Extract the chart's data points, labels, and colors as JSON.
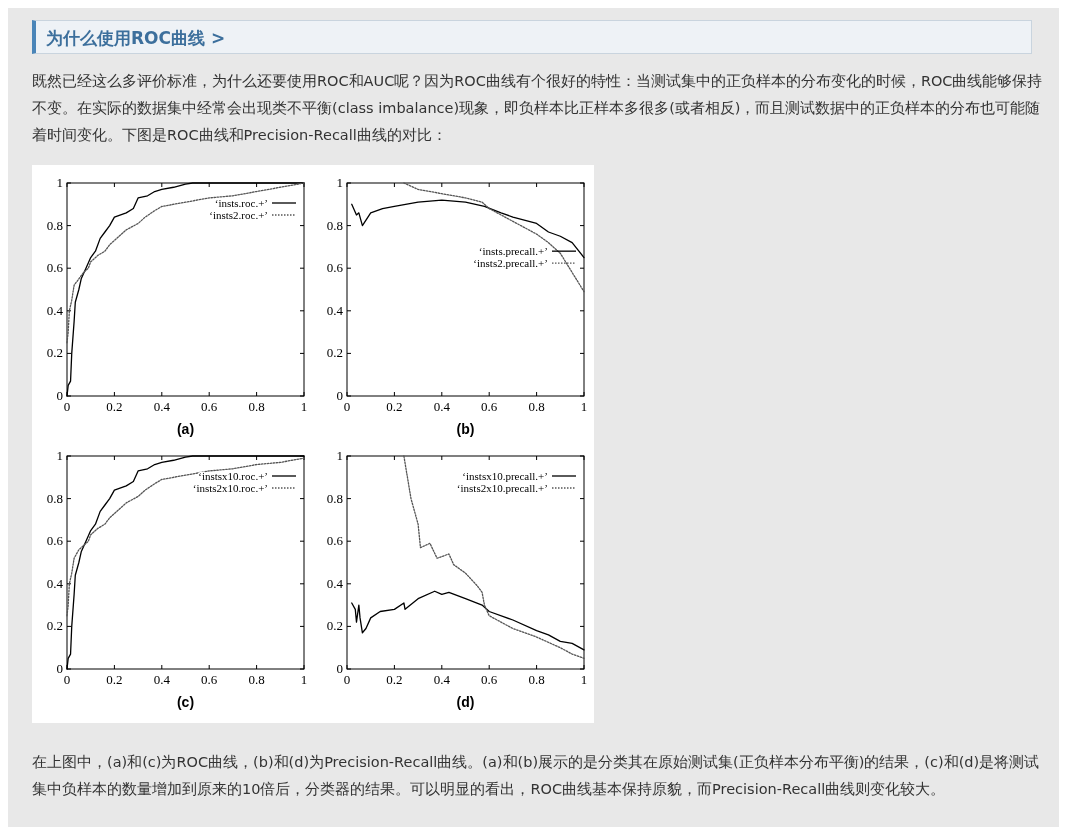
{
  "chart_data": [
    {
      "type": "line",
      "xlabel": "(a)",
      "xlim": [
        0,
        1
      ],
      "ylim": [
        0,
        1
      ],
      "xticks": [
        0,
        0.2,
        0.4,
        0.6,
        0.8,
        1
      ],
      "yticks": [
        0,
        0.2,
        0.4,
        0.6,
        0.8,
        1
      ],
      "legend": "top right",
      "annotations": [
        "为什么使用ROC曲线 >",
        "既然已经这么多评价标准，为什么还要使用ROC和AUC呢？因为ROC曲线有个很好的特性：当测试集中的正负样本的分布变化的时候，ROC曲线能够保持不变。在实际的数据集中经常会出现类不平衡(class imbalance)现象，即负样本比正样本多很多(或者相反)，而且测试数据中的正负样本的分布也可能随着时间变化。下图是ROC曲线和Precision-Recall曲线的对比：",
        "在上图中，(a)和(c)为ROC曲线，(b)和(d)为Precision-Recall曲线。(a)和(b)展示的是分类其在原始测试集(正负样本分布平衡)的结果，(c)和(d)是将测试集中负样本的数量增加到原来的10倍后，分类器的结果。可以明显的看出，ROC曲线基本保持原貌，而Precision-Recall曲线则变化较大。"
      ],
      "series": [
        {
          "name": "‘insts.roc.+’",
          "color": "#000000",
          "line_style": "solid",
          "x": [
            0,
            0.005,
            0.015,
            0.02,
            0.03,
            0.035,
            0.05,
            0.06,
            0.08,
            0.1,
            0.12,
            0.14,
            0.16,
            0.18,
            0.2,
            0.25,
            0.28,
            0.3,
            0.34,
            0.37,
            0.4,
            0.45,
            0.5,
            0.53,
            1
          ],
          "values": [
            0,
            0.05,
            0.07,
            0.2,
            0.35,
            0.44,
            0.5,
            0.55,
            0.6,
            0.65,
            0.68,
            0.74,
            0.77,
            0.8,
            0.84,
            0.86,
            0.88,
            0.93,
            0.94,
            0.96,
            0.97,
            0.98,
            0.995,
            1,
            1
          ]
        },
        {
          "name": "‘insts2.roc.+’",
          "color": "#555555",
          "line_style": "dotted",
          "x": [
            0,
            0.005,
            0.01,
            0.02,
            0.03,
            0.05,
            0.07,
            0.09,
            0.1,
            0.13,
            0.16,
            0.18,
            0.2,
            0.25,
            0.3,
            0.33,
            0.37,
            0.4,
            0.5,
            0.6,
            0.7,
            0.8,
            0.9,
            0.95,
            1
          ],
          "values": [
            0.25,
            0.3,
            0.4,
            0.45,
            0.52,
            0.55,
            0.58,
            0.6,
            0.63,
            0.66,
            0.68,
            0.71,
            0.73,
            0.78,
            0.81,
            0.84,
            0.87,
            0.89,
            0.91,
            0.93,
            0.94,
            0.96,
            0.98,
            0.99,
            1
          ]
        }
      ]
    },
    {
      "type": "line",
      "xlabel": "(b)",
      "xlim": [
        0,
        1
      ],
      "ylim": [
        0,
        1
      ],
      "xticks": [
        0,
        0.2,
        0.4,
        0.6,
        0.8,
        1
      ],
      "yticks": [
        0,
        0.2,
        0.4,
        0.6,
        0.8,
        1
      ],
      "legend": "right",
      "series": [
        {
          "name": "‘insts.precall.+’",
          "color": "#000000",
          "line_style": "solid",
          "x": [
            0.02,
            0.04,
            0.05,
            0.065,
            0.1,
            0.15,
            0.2,
            0.3,
            0.4,
            0.5,
            0.58,
            0.65,
            0.7,
            0.8,
            0.85,
            0.9,
            0.95,
            1
          ],
          "values": [
            0.9,
            0.85,
            0.86,
            0.8,
            0.86,
            0.88,
            0.89,
            0.91,
            0.92,
            0.91,
            0.89,
            0.86,
            0.84,
            0.81,
            0.77,
            0.75,
            0.72,
            0.65
          ]
        },
        {
          "name": "‘insts2.precall.+’",
          "color": "#555555",
          "line_style": "dotted",
          "x": [
            0.24,
            0.3,
            0.4,
            0.5,
            0.57,
            0.6,
            0.7,
            0.8,
            0.85,
            0.9,
            0.95,
            1
          ],
          "values": [
            1,
            0.97,
            0.95,
            0.93,
            0.91,
            0.88,
            0.82,
            0.76,
            0.72,
            0.67,
            0.58,
            0.49
          ]
        }
      ]
    },
    {
      "type": "line",
      "xlabel": "(c)",
      "xlim": [
        0,
        1
      ],
      "ylim": [
        0,
        1
      ],
      "xticks": [
        0,
        0.2,
        0.4,
        0.6,
        0.8,
        1
      ],
      "yticks": [
        0,
        0.2,
        0.4,
        0.6,
        0.8,
        1
      ],
      "legend": "top right",
      "series": [
        {
          "name": "‘instsx10.roc.+’",
          "color": "#000000",
          "line_style": "solid",
          "x": [
            0,
            0.005,
            0.015,
            0.02,
            0.03,
            0.035,
            0.05,
            0.06,
            0.08,
            0.1,
            0.12,
            0.14,
            0.16,
            0.18,
            0.2,
            0.25,
            0.28,
            0.3,
            0.34,
            0.37,
            0.4,
            0.45,
            0.5,
            0.53,
            1
          ],
          "values": [
            0,
            0.05,
            0.07,
            0.2,
            0.35,
            0.44,
            0.5,
            0.55,
            0.6,
            0.65,
            0.68,
            0.74,
            0.77,
            0.8,
            0.84,
            0.86,
            0.88,
            0.93,
            0.94,
            0.96,
            0.97,
            0.98,
            0.995,
            1,
            1
          ]
        },
        {
          "name": "‘insts2x10.roc.+’",
          "color": "#555555",
          "line_style": "dotted",
          "x": [
            0,
            0.005,
            0.01,
            0.02,
            0.03,
            0.05,
            0.07,
            0.09,
            0.1,
            0.13,
            0.16,
            0.18,
            0.2,
            0.25,
            0.3,
            0.33,
            0.37,
            0.4,
            0.5,
            0.6,
            0.7,
            0.8,
            0.9,
            0.95,
            1
          ],
          "values": [
            0.25,
            0.3,
            0.4,
            0.45,
            0.52,
            0.56,
            0.58,
            0.6,
            0.63,
            0.66,
            0.68,
            0.71,
            0.73,
            0.78,
            0.81,
            0.84,
            0.87,
            0.89,
            0.91,
            0.93,
            0.94,
            0.96,
            0.97,
            0.98,
            0.99
          ]
        }
      ]
    },
    {
      "type": "line",
      "xlabel": "(d)",
      "xlim": [
        0,
        1
      ],
      "ylim": [
        0,
        1
      ],
      "xticks": [
        0,
        0.2,
        0.4,
        0.6,
        0.8,
        1
      ],
      "yticks": [
        0,
        0.2,
        0.4,
        0.6,
        0.8,
        1
      ],
      "legend": "top right",
      "series": [
        {
          "name": "‘instsx10.precall.+’",
          "color": "#000000",
          "line_style": "solid",
          "x": [
            0.02,
            0.035,
            0.04,
            0.05,
            0.055,
            0.065,
            0.08,
            0.1,
            0.14,
            0.2,
            0.24,
            0.245,
            0.3,
            0.37,
            0.4,
            0.43,
            0.5,
            0.57,
            0.6,
            0.7,
            0.8,
            0.85,
            0.9,
            0.95,
            1
          ],
          "values": [
            0.31,
            0.28,
            0.22,
            0.3,
            0.24,
            0.17,
            0.19,
            0.24,
            0.27,
            0.28,
            0.31,
            0.28,
            0.33,
            0.365,
            0.35,
            0.36,
            0.33,
            0.3,
            0.27,
            0.23,
            0.18,
            0.16,
            0.13,
            0.12,
            0.09
          ]
        },
        {
          "name": "‘insts2x10.precall.+’",
          "color": "#555555",
          "line_style": "dotted",
          "x": [
            0.24,
            0.27,
            0.3,
            0.31,
            0.35,
            0.38,
            0.43,
            0.45,
            0.5,
            0.55,
            0.57,
            0.58,
            0.6,
            0.7,
            0.8,
            0.9,
            0.95,
            1
          ],
          "values": [
            1,
            0.8,
            0.68,
            0.57,
            0.59,
            0.52,
            0.54,
            0.49,
            0.45,
            0.39,
            0.36,
            0.3,
            0.25,
            0.19,
            0.15,
            0.1,
            0.07,
            0.05
          ]
        }
      ]
    }
  ]
}
